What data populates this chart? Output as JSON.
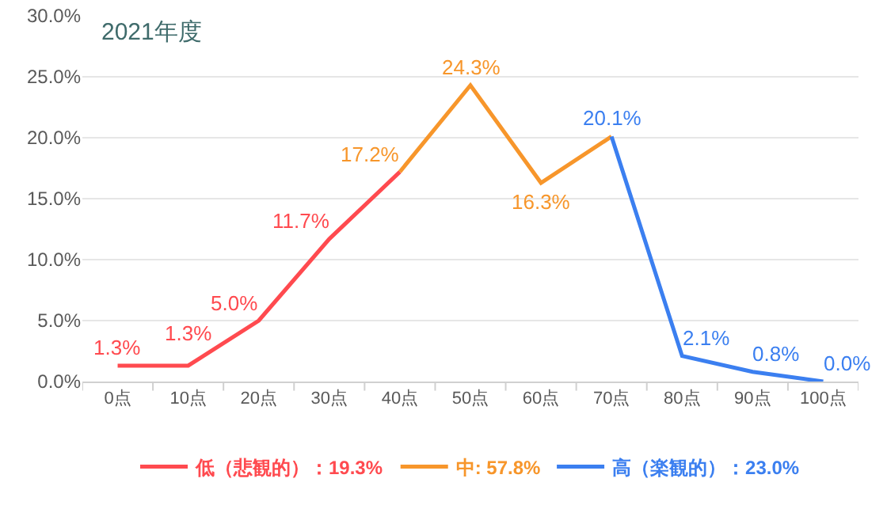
{
  "chart_data": {
    "type": "line",
    "title": "2021年度",
    "categories": [
      "0点",
      "10点",
      "20点",
      "30点",
      "40点",
      "50点",
      "60点",
      "70点",
      "80点",
      "90点",
      "100点"
    ],
    "series": [
      {
        "name": "低（悲観的）：19.3%",
        "color": "#ff4a4f",
        "values": [
          1.3,
          1.3,
          5.0,
          11.7,
          17.2,
          null,
          null,
          null,
          null,
          null,
          null
        ],
        "value_labels": [
          "1.3%",
          "1.3%",
          "5.0%",
          "11.7%",
          null,
          null,
          null,
          null,
          null,
          null,
          null
        ]
      },
      {
        "name": "中: 57.8%",
        "color": "#f7962b",
        "values": [
          null,
          null,
          null,
          null,
          17.2,
          24.3,
          16.3,
          20.1,
          null,
          null,
          null
        ],
        "value_labels": [
          null,
          null,
          null,
          null,
          "17.2%",
          "24.3%",
          "16.3%",
          null,
          null,
          null,
          null
        ]
      },
      {
        "name": "高（楽観的）：23.0%",
        "color": "#3b7ff0",
        "values": [
          null,
          null,
          null,
          null,
          null,
          null,
          null,
          20.1,
          2.1,
          0.8,
          0.0
        ],
        "value_labels": [
          null,
          null,
          null,
          null,
          null,
          null,
          null,
          "20.1%",
          "2.1%",
          "0.8%",
          "0.0%"
        ]
      }
    ],
    "ylim": [
      0,
      30
    ],
    "yticks": [
      {
        "value": 0,
        "label": "0.0%"
      },
      {
        "value": 5,
        "label": "5.0%"
      },
      {
        "value": 10,
        "label": "10.0%"
      },
      {
        "value": 15,
        "label": "15.0%"
      },
      {
        "value": 20,
        "label": "20.0%"
      },
      {
        "value": 25,
        "label": "25.0%"
      },
      {
        "value": 30,
        "label": "30.0%"
      }
    ],
    "grid": "y",
    "legend": "bottom",
    "marker": "none",
    "line_style": "solid"
  }
}
